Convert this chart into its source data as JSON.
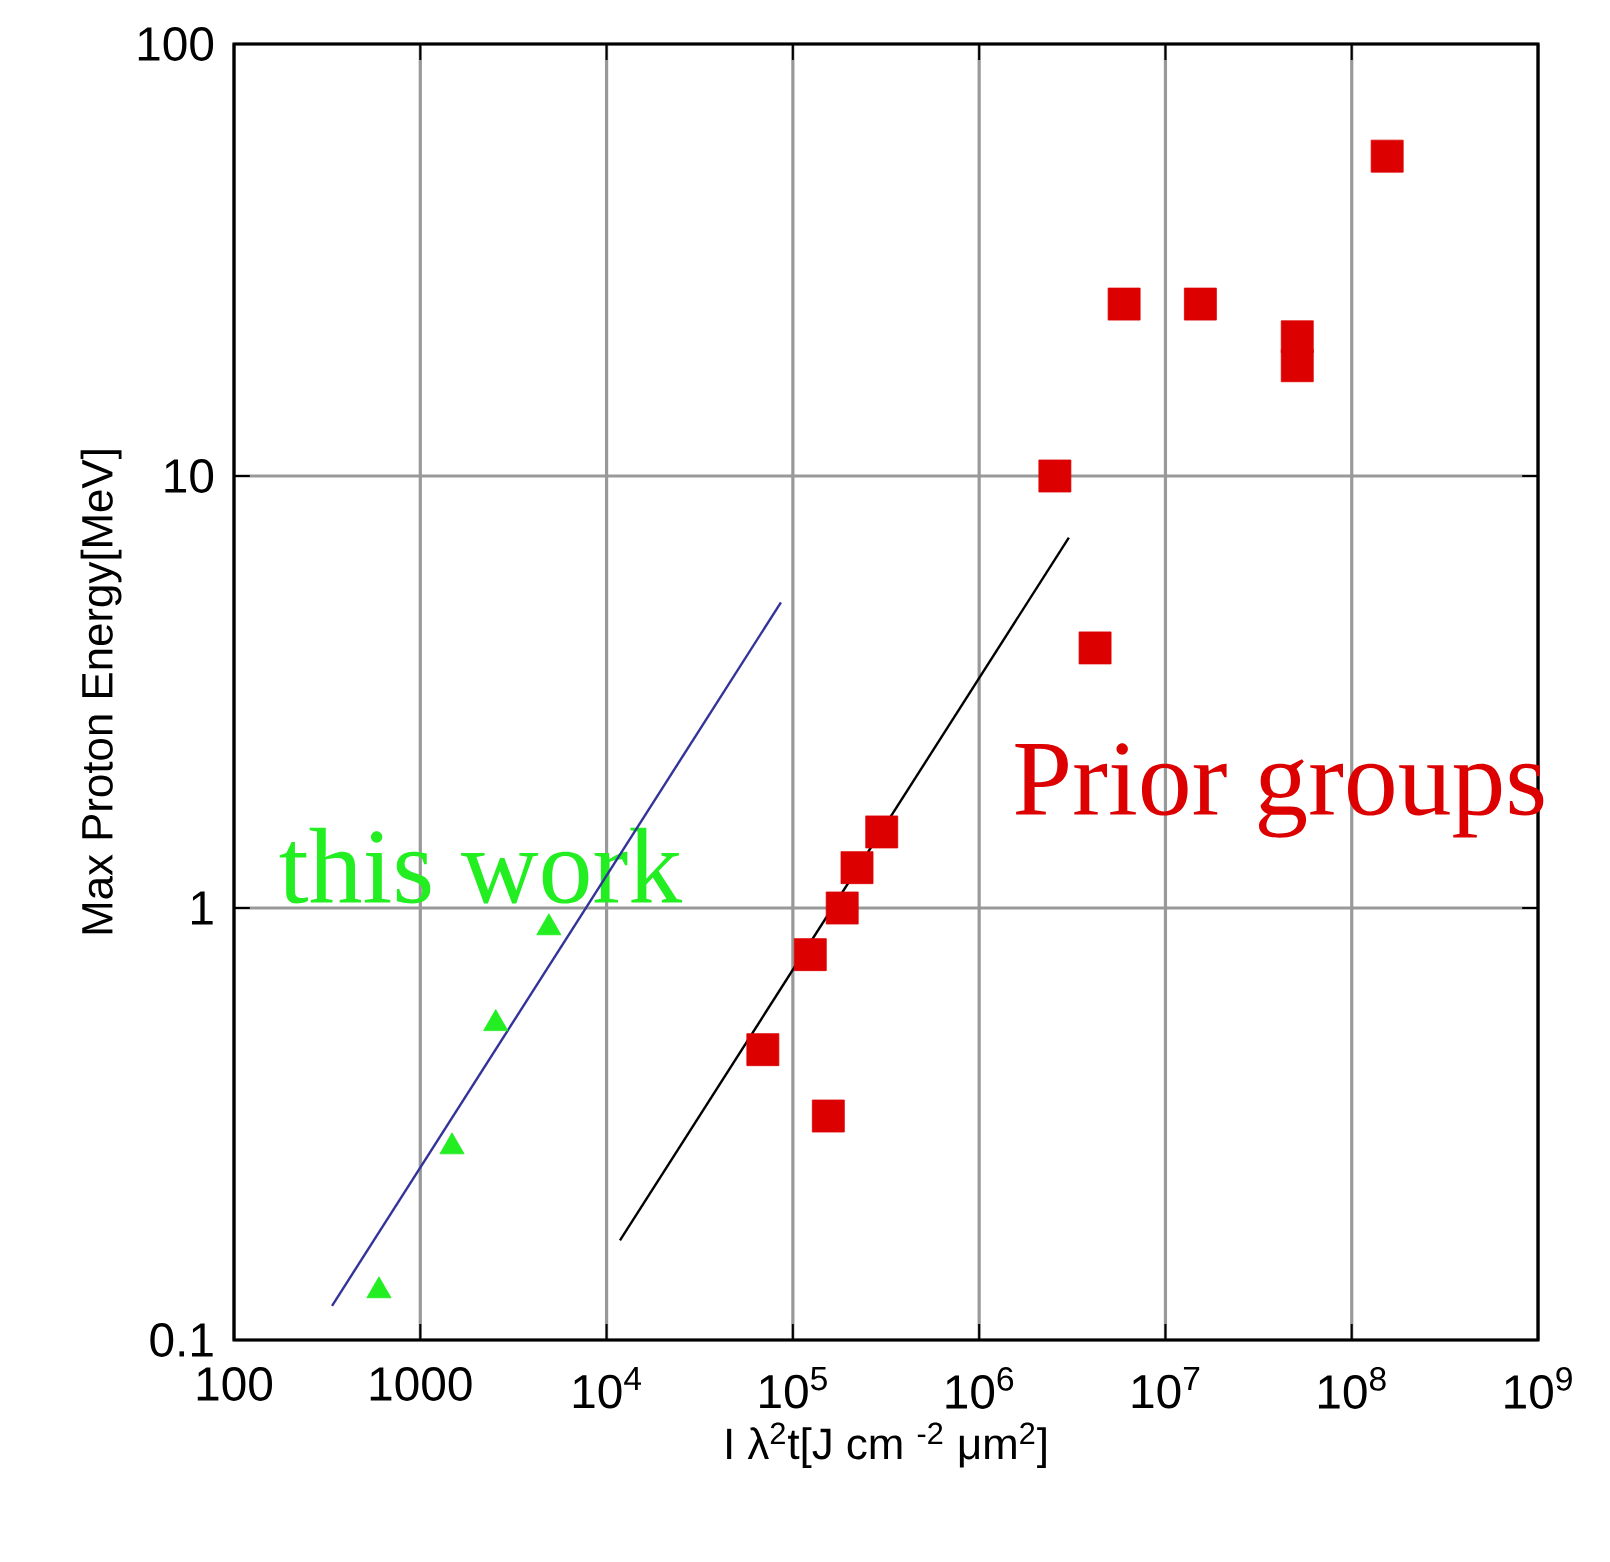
{
  "chart_data": {
    "type": "scatter",
    "xlabel": "I λ$^{2}$t[J cm $^{-2}$  μm$^{2}$]",
    "ylabel": "Max Proton Energy[MeV]",
    "log": "xy",
    "xlim": [
      100,
      1000000000
    ],
    "ylim": [
      0.1,
      100
    ],
    "xticks": [
      100,
      1000,
      {
        "value": 10000,
        "label": "10$^{4}$"
      },
      {
        "value": 100000,
        "label": "10$^{5}$"
      },
      {
        "value": 1000000,
        "label": "10$^{6}$"
      },
      {
        "value": 10000000,
        "label": "10$^{7}$"
      },
      {
        "value": 100000000,
        "label": "10$^{8}$"
      },
      {
        "value": 1000000000,
        "label": "10$^{9}$"
      }
    ],
    "yticks": [
      0.1,
      1,
      10,
      100
    ],
    "grid": true,
    "series": [
      {
        "name": "this work",
        "marker": "triangle",
        "color": "#22ee22",
        "x": [
          600,
          1480,
          2540,
          4900
        ],
        "values": [
          0.13,
          0.28,
          0.54,
          0.9
        ]
      },
      {
        "name": "Prior groups",
        "marker": "square",
        "color": "#dd0000",
        "x": [
          69000,
          124000,
          155000,
          184000,
          221000,
          300000,
          2550000,
          4190000,
          6000000,
          15400000,
          51000000,
          51000000,
          155000000
        ],
        "values": [
          0.47,
          0.78,
          0.33,
          1.0,
          1.24,
          1.5,
          10,
          4,
          25,
          25,
          21,
          18,
          55
        ]
      },
      {
        "type": "line",
        "marker": "none",
        "color": "#333399",
        "x": [
          336,
          86300
        ],
        "values": [
          0.12,
          5.1
        ]
      },
      {
        "type": "line",
        "marker": "none",
        "color": "#000000",
        "x": [
          11800,
          3030000
        ],
        "values": [
          0.17,
          7.2
        ]
      }
    ]
  }
}
